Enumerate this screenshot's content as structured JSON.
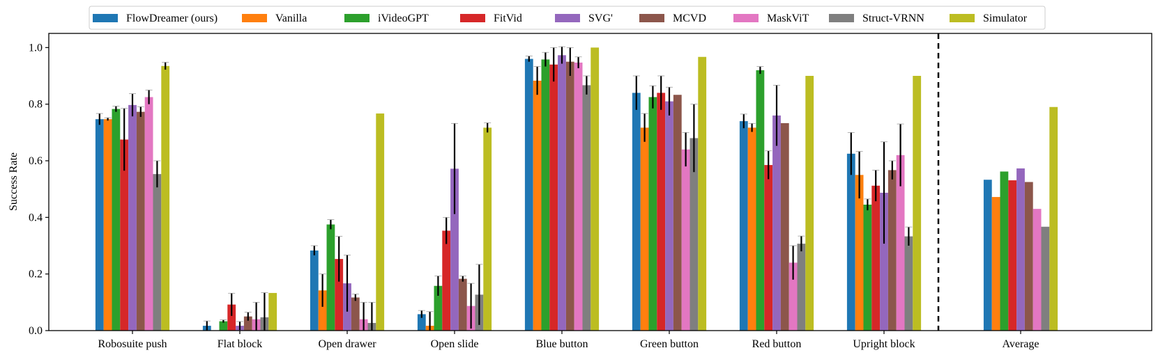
{
  "chart_data": {
    "type": "bar",
    "title": "",
    "xlabel": "",
    "ylabel": "Success Rate",
    "ylim": [
      0,
      1.05
    ],
    "yticks": [
      0.0,
      0.2,
      0.4,
      0.6,
      0.8,
      1.0
    ],
    "ytick_labels": [
      "0.0",
      "0.2",
      "0.4",
      "0.6",
      "0.8",
      "1.0"
    ],
    "grid": false,
    "legend_position": "top-center",
    "separator_before_category": "Average",
    "categories": [
      "Robosuite push",
      "Flat block",
      "Open drawer",
      "Open slide",
      "Blue button",
      "Green button",
      "Red button",
      "Upright block",
      "Average"
    ],
    "series": [
      {
        "name": "FlowDreamer (ours)",
        "color": "#1f77b4",
        "values": [
          0.747,
          0.017,
          0.283,
          0.058,
          0.96,
          0.84,
          0.74,
          0.625,
          0.533
        ],
        "errors": [
          0.02,
          0.017,
          0.017,
          0.013,
          0.01,
          0.06,
          0.025,
          0.075,
          0
        ]
      },
      {
        "name": "Vanilla",
        "color": "#ff7f0e",
        "values": [
          0.747,
          0.0,
          0.142,
          0.017,
          0.883,
          0.717,
          0.717,
          0.55,
          0.472
        ],
        "errors": [
          0.005,
          0,
          0.058,
          0.05,
          0.05,
          0.05,
          0.015,
          0.083,
          0
        ]
      },
      {
        "name": "iVideoGPT",
        "color": "#2ca02c",
        "values": [
          0.783,
          0.033,
          0.375,
          0.158,
          0.958,
          0.825,
          0.92,
          0.445,
          0.562
        ],
        "errors": [
          0.01,
          0.005,
          0.017,
          0.035,
          0.025,
          0.04,
          0.013,
          0.02,
          0
        ]
      },
      {
        "name": "FitVid",
        "color": "#d62728",
        "values": [
          0.675,
          0.092,
          0.253,
          0.353,
          0.94,
          0.84,
          0.585,
          0.512,
          0.531
        ],
        "errors": [
          0.11,
          0.04,
          0.08,
          0.047,
          0.06,
          0.06,
          0.05,
          0.055,
          0
        ]
      },
      {
        "name": "SVG'",
        "color": "#9467bd",
        "values": [
          0.797,
          0.017,
          0.167,
          0.572,
          0.973,
          0.81,
          0.76,
          0.487,
          0.573
        ],
        "errors": [
          0.04,
          0.015,
          0.1,
          0.16,
          0.03,
          0.05,
          0.107,
          0.18,
          0
        ]
      },
      {
        "name": "MCVD",
        "color": "#8c564b",
        "values": [
          0.773,
          0.05,
          0.117,
          0.183,
          0.95,
          0.833,
          0.733,
          0.567,
          0.525
        ],
        "errors": [
          0.018,
          0.015,
          0.012,
          0.01,
          0.05,
          0,
          0,
          0.033,
          0
        ]
      },
      {
        "name": "MaskViT",
        "color": "#e377c2",
        "values": [
          0.825,
          0.04,
          0.04,
          0.087,
          0.947,
          0.64,
          0.24,
          0.62,
          0.43
        ],
        "errors": [
          0.025,
          0.06,
          0.06,
          0.08,
          0.02,
          0.06,
          0.06,
          0.11,
          0
        ]
      },
      {
        "name": "Struct-VRNN",
        "color": "#7f7f7f",
        "values": [
          0.553,
          0.047,
          0.027,
          0.127,
          0.867,
          0.68,
          0.307,
          0.333,
          0.367
        ],
        "errors": [
          0.047,
          0.087,
          0.073,
          0.107,
          0.033,
          0.12,
          0.027,
          0.033,
          0
        ]
      },
      {
        "name": "Simulator",
        "color": "#bcbd22",
        "values": [
          0.935,
          0.133,
          0.767,
          0.717,
          1.0,
          0.967,
          0.9,
          0.9,
          0.79
        ],
        "errors": [
          0.013,
          0,
          0,
          0.017,
          0,
          0,
          0,
          0,
          0
        ]
      }
    ]
  }
}
